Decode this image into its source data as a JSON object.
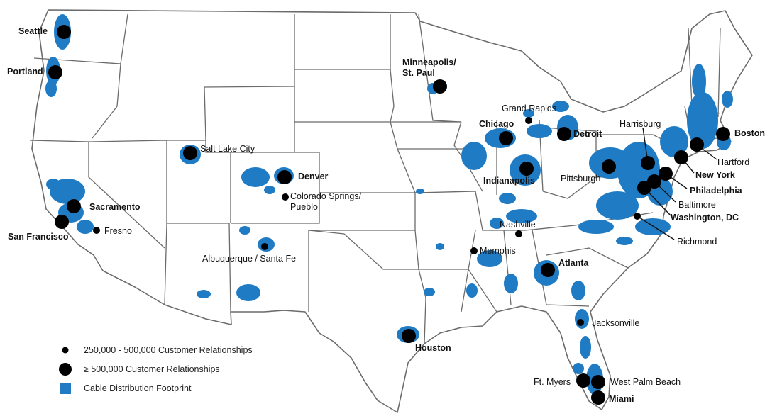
{
  "colors": {
    "footprint": "#1f7bc4",
    "marker": "#000000",
    "border": "#6b6b6b",
    "land": "#ffffff"
  },
  "legend": {
    "items": [
      {
        "symbol": "small-dot",
        "label": "250,000 - 500,000 Customer Relationships"
      },
      {
        "symbol": "large-dot",
        "label": "≥ 500,000 Customer Relationships"
      },
      {
        "symbol": "blue-square",
        "label": "Cable Distribution Footprint"
      }
    ]
  },
  "cities": [
    {
      "name": "Seattle",
      "size": "large",
      "bold": true
    },
    {
      "name": "Portland",
      "size": "large",
      "bold": true
    },
    {
      "name": "Minneapolis/",
      "name2": "St. Paul",
      "size": "large",
      "bold": true
    },
    {
      "name": "Grand Rapids",
      "size": "small",
      "bold": false
    },
    {
      "name": "Chicago",
      "size": "large",
      "bold": true
    },
    {
      "name": "Detroit",
      "size": "large",
      "bold": true
    },
    {
      "name": "Indianapolis",
      "size": "large",
      "bold": true
    },
    {
      "name": "Salt Lake City",
      "size": "large",
      "bold": false
    },
    {
      "name": "Denver",
      "size": "large",
      "bold": true
    },
    {
      "name": "Colorado Springs/",
      "name2": "Pueblo",
      "size": "small",
      "bold": false
    },
    {
      "name": "Sacramento",
      "size": "large",
      "bold": true
    },
    {
      "name": "San Francisco",
      "size": "large",
      "bold": true
    },
    {
      "name": "Fresno",
      "size": "small",
      "bold": false
    },
    {
      "name": "Albuquerque / Santa Fe",
      "size": "small",
      "bold": false
    },
    {
      "name": "Nashville",
      "size": "small",
      "bold": false
    },
    {
      "name": "Memphis",
      "size": "small",
      "bold": false
    },
    {
      "name": "Atlanta",
      "size": "large",
      "bold": true
    },
    {
      "name": "Houston",
      "size": "large",
      "bold": true
    },
    {
      "name": "Jacksonville",
      "size": "small",
      "bold": false
    },
    {
      "name": "Ft. Myers",
      "size": "large",
      "bold": false
    },
    {
      "name": "West Palm Beach",
      "size": "large",
      "bold": false
    },
    {
      "name": "Miami",
      "size": "large",
      "bold": true
    },
    {
      "name": "Pittsburgh",
      "size": "large",
      "bold": false
    },
    {
      "name": "Harrisburg",
      "size": "large",
      "bold": false
    },
    {
      "name": "Boston",
      "size": "large",
      "bold": true
    },
    {
      "name": "Hartford",
      "size": "large",
      "bold": false
    },
    {
      "name": "New York",
      "size": "large",
      "bold": true
    },
    {
      "name": "Philadelphia",
      "size": "large",
      "bold": true
    },
    {
      "name": "Baltimore",
      "size": "large",
      "bold": false
    },
    {
      "name": "Washington, DC",
      "size": "large",
      "bold": true
    },
    {
      "name": "Richmond",
      "size": "small",
      "bold": false
    }
  ]
}
